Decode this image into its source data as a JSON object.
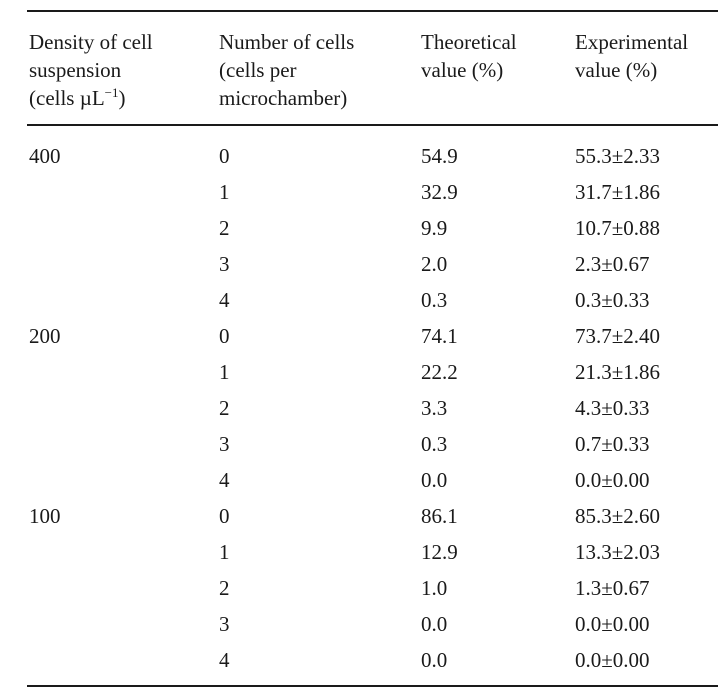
{
  "table": {
    "headers": {
      "density": [
        "Density of cell",
        "suspension",
        "(cells µL",
        "−1",
        ")"
      ],
      "number": [
        "Number of cells",
        "(cells per",
        "microchamber)"
      ],
      "theoretical": [
        "Theoretical",
        "value (%)"
      ],
      "experimental": [
        "Experimental",
        "value (%)"
      ]
    },
    "rows": [
      {
        "density": "400",
        "cells": "0",
        "theoretical": "54.9",
        "experimental": "55.3±2.33"
      },
      {
        "density": "",
        "cells": "1",
        "theoretical": "32.9",
        "experimental": "31.7±1.86"
      },
      {
        "density": "",
        "cells": "2",
        "theoretical": "9.9",
        "experimental": "10.7±0.88"
      },
      {
        "density": "",
        "cells": "3",
        "theoretical": "2.0",
        "experimental": "2.3±0.67"
      },
      {
        "density": "",
        "cells": "4",
        "theoretical": "0.3",
        "experimental": "0.3±0.33"
      },
      {
        "density": "200",
        "cells": "0",
        "theoretical": "74.1",
        "experimental": "73.7±2.40"
      },
      {
        "density": "",
        "cells": "1",
        "theoretical": "22.2",
        "experimental": "21.3±1.86"
      },
      {
        "density": "",
        "cells": "2",
        "theoretical": "3.3",
        "experimental": "4.3±0.33"
      },
      {
        "density": "",
        "cells": "3",
        "theoretical": "0.3",
        "experimental": "0.7±0.33"
      },
      {
        "density": "",
        "cells": "4",
        "theoretical": "0.0",
        "experimental": "0.0±0.00"
      },
      {
        "density": "100",
        "cells": "0",
        "theoretical": "86.1",
        "experimental": "85.3±2.60"
      },
      {
        "density": "",
        "cells": "1",
        "theoretical": "12.9",
        "experimental": "13.3±2.03"
      },
      {
        "density": "",
        "cells": "2",
        "theoretical": "1.0",
        "experimental": "1.3±0.67"
      },
      {
        "density": "",
        "cells": "3",
        "theoretical": "0.0",
        "experimental": "0.0±0.00"
      },
      {
        "density": "",
        "cells": "4",
        "theoretical": "0.0",
        "experimental": "0.0±0.00"
      }
    ]
  }
}
